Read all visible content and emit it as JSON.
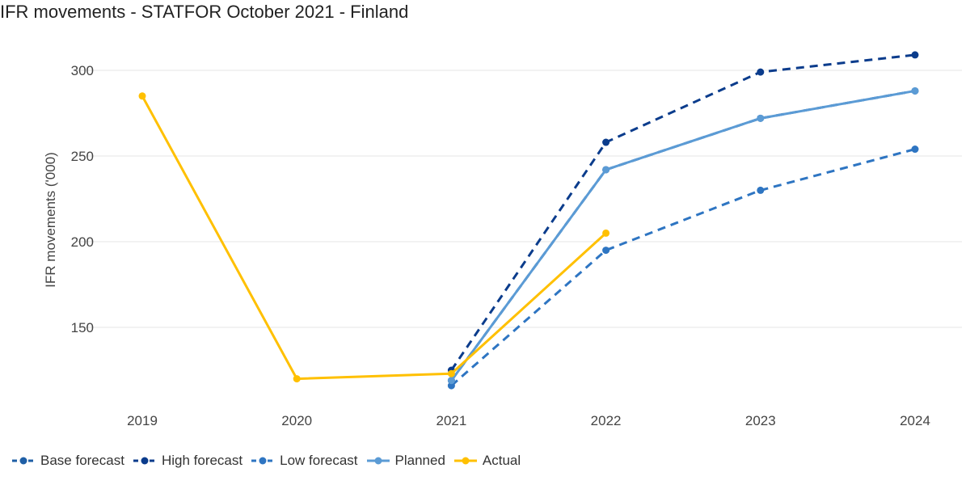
{
  "chart_data": {
    "type": "line",
    "title": "IFR movements - STATFOR October 2021 - Finland",
    "xlabel": "",
    "ylabel": "IFR movements ('000)",
    "categories": [
      "2019",
      "2020",
      "2021",
      "2022",
      "2023",
      "2024"
    ],
    "yticks": [
      150,
      200,
      250,
      300
    ],
    "ylim": [
      108,
      314
    ],
    "grid": true,
    "legend_position": "bottom-left",
    "series": [
      {
        "name": "Base forecast",
        "color": "#1F5FA6",
        "dash": true,
        "values": [
          null,
          null,
          119,
          242,
          272,
          288
        ]
      },
      {
        "name": "High forecast",
        "color": "#0B3C8C",
        "dash": true,
        "values": [
          null,
          null,
          125,
          258,
          299,
          309
        ]
      },
      {
        "name": "Low forecast",
        "color": "#2E75C2",
        "dash": true,
        "values": [
          null,
          null,
          116,
          195,
          230,
          254
        ]
      },
      {
        "name": "Planned",
        "color": "#5B9BD5",
        "dash": false,
        "values": [
          null,
          null,
          119,
          242,
          272,
          288
        ]
      },
      {
        "name": "Actual",
        "color": "#FFC000",
        "dash": false,
        "values": [
          285,
          120,
          123,
          205,
          null,
          null
        ]
      }
    ]
  }
}
